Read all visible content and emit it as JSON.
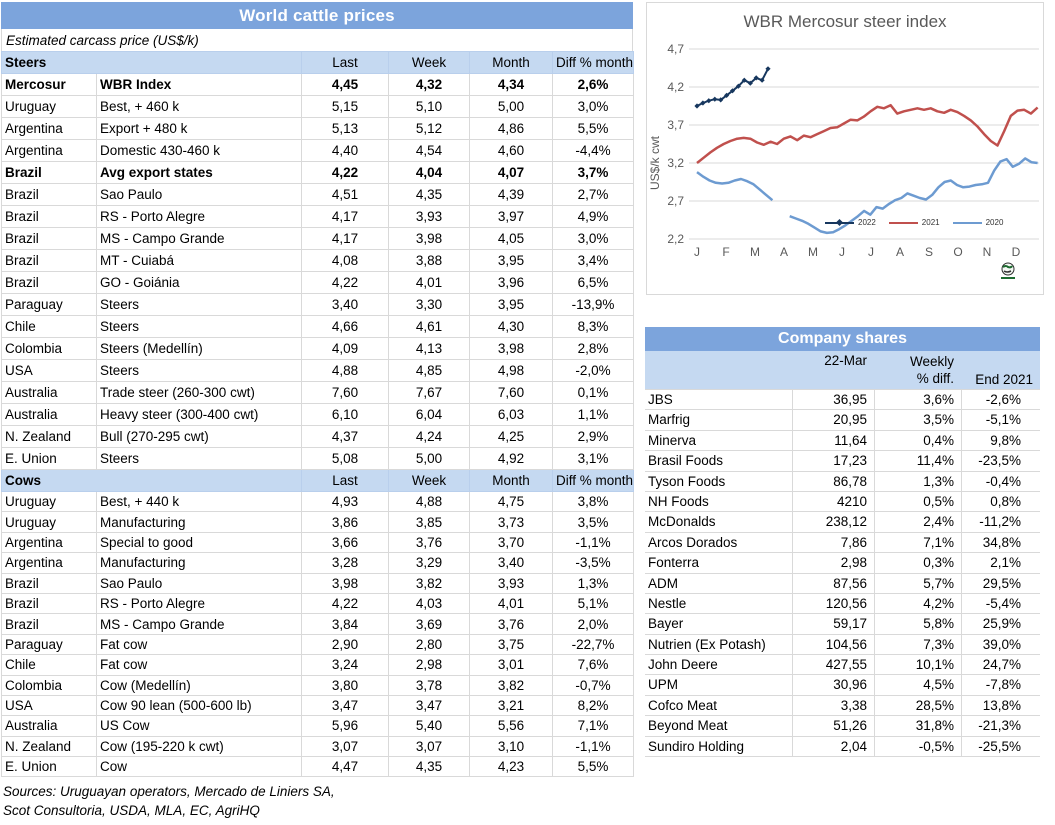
{
  "colors": {
    "title_bar": "#7CA4DC",
    "header_bg": "#C5D9F1",
    "grid": "#D9D9D9",
    "axis_text": "#595959",
    "series_2022": "#17375E",
    "series_2021": "#C0504D",
    "series_2020": "#6D9BD1"
  },
  "price_table": {
    "title": "World cattle prices",
    "subtitle": "Estimated carcass price (US$/k)",
    "columns": [
      "Last",
      "Week",
      "Month",
      "Diff % month"
    ],
    "sections": [
      {
        "label": "Steers",
        "rows": [
          {
            "country": "Mercosur",
            "desc": "WBR Index",
            "last": "4,45",
            "week": "4,32",
            "month": "4,34",
            "diff": "2,6%",
            "bold": true
          },
          {
            "country": "Uruguay",
            "desc": "Best, + 460 k",
            "last": "5,15",
            "week": "5,10",
            "month": "5,00",
            "diff": "3,0%"
          },
          {
            "country": "Argentina",
            "desc": "Export + 480 k",
            "last": "5,13",
            "week": "5,12",
            "month": "4,86",
            "diff": "5,5%"
          },
          {
            "country": "Argentina",
            "desc": "Domestic 430-460 k",
            "last": "4,40",
            "week": "4,54",
            "month": "4,60",
            "diff": "-4,4%"
          },
          {
            "country": "Brazil",
            "desc": "Avg export states",
            "last": "4,22",
            "week": "4,04",
            "month": "4,07",
            "diff": "3,7%",
            "bold": true
          },
          {
            "country": "Brazil",
            "desc": "Sao Paulo",
            "last": "4,51",
            "week": "4,35",
            "month": "4,39",
            "diff": "2,7%"
          },
          {
            "country": "Brazil",
            "desc": "RS - Porto Alegre",
            "last": "4,17",
            "week": "3,93",
            "month": "3,97",
            "diff": "4,9%"
          },
          {
            "country": "Brazil",
            "desc": "MS - Campo Grande",
            "last": "4,17",
            "week": "3,98",
            "month": "4,05",
            "diff": "3,0%"
          },
          {
            "country": "Brazil",
            "desc": "MT - Cuiabá",
            "last": "4,08",
            "week": "3,88",
            "month": "3,95",
            "diff": "3,4%"
          },
          {
            "country": "Brazil",
            "desc": "GO - Goiánia",
            "last": "4,22",
            "week": "4,01",
            "month": "3,96",
            "diff": "6,5%"
          },
          {
            "country": "Paraguay",
            "desc": "Steers",
            "last": "3,40",
            "week": "3,30",
            "month": "3,95",
            "diff": "-13,9%"
          },
          {
            "country": "Chile",
            "desc": "Steers",
            "last": "4,66",
            "week": "4,61",
            "month": "4,30",
            "diff": "8,3%"
          },
          {
            "country": "Colombia",
            "desc": "Steers (Medellín)",
            "last": "4,09",
            "week": "4,13",
            "month": "3,98",
            "diff": "2,8%"
          },
          {
            "country": "USA",
            "desc": "Steers",
            "last": "4,88",
            "week": "4,85",
            "month": "4,98",
            "diff": "-2,0%"
          },
          {
            "country": "Australia",
            "desc": "Trade steer (260-300 cwt)",
            "last": "7,60",
            "week": "7,67",
            "month": "7,60",
            "diff": "0,1%"
          },
          {
            "country": "Australia",
            "desc": "Heavy steer (300-400 cwt)",
            "last": "6,10",
            "week": "6,04",
            "month": "6,03",
            "diff": "1,1%"
          },
          {
            "country": "N. Zealand",
            "desc": "Bull (270-295 cwt)",
            "last": "4,37",
            "week": "4,24",
            "month": "4,25",
            "diff": "2,9%"
          },
          {
            "country": "E. Union",
            "desc": "Steers",
            "last": "5,08",
            "week": "5,00",
            "month": "4,92",
            "diff": "3,1%"
          }
        ]
      },
      {
        "label": "Cows",
        "rows": [
          {
            "country": "Uruguay",
            "desc": "Best, + 440 k",
            "last": "4,93",
            "week": "4,88",
            "month": "4,75",
            "diff": "3,8%"
          },
          {
            "country": "Uruguay",
            "desc": "Manufacturing",
            "last": "3,86",
            "week": "3,85",
            "month": "3,73",
            "diff": "3,5%"
          },
          {
            "country": "Argentina",
            "desc": "Special to good",
            "last": "3,66",
            "week": "3,76",
            "month": "3,70",
            "diff": "-1,1%"
          },
          {
            "country": "Argentina",
            "desc": "Manufacturing",
            "last": "3,28",
            "week": "3,29",
            "month": "3,40",
            "diff": "-3,5%"
          },
          {
            "country": "Brazil",
            "desc": "Sao Paulo",
            "last": "3,98",
            "week": "3,82",
            "month": "3,93",
            "diff": "1,3%"
          },
          {
            "country": "Brazil",
            "desc": "RS - Porto Alegre",
            "last": "4,22",
            "week": "4,03",
            "month": "4,01",
            "diff": "5,1%"
          },
          {
            "country": "Brazil",
            "desc": "MS - Campo Grande",
            "last": "3,84",
            "week": "3,69",
            "month": "3,76",
            "diff": "2,0%"
          },
          {
            "country": "Paraguay",
            "desc": "Fat cow",
            "last": "2,90",
            "week": "2,80",
            "month": "3,75",
            "diff": "-22,7%"
          },
          {
            "country": "Chile",
            "desc": "Fat cow",
            "last": "3,24",
            "week": "2,98",
            "month": "3,01",
            "diff": "7,6%"
          },
          {
            "country": "Colombia",
            "desc": "Cow (Medellín)",
            "last": "3,80",
            "week": "3,78",
            "month": "3,82",
            "diff": "-0,7%"
          },
          {
            "country": "USA",
            "desc": "Cow 90 lean (500-600 lb)",
            "last": "3,47",
            "week": "3,47",
            "month": "3,21",
            "diff": "8,2%"
          },
          {
            "country": "Australia",
            "desc": "US Cow",
            "last": "5,96",
            "week": "5,40",
            "month": "5,56",
            "diff": "7,1%"
          },
          {
            "country": "N. Zealand",
            "desc": "Cow (195-220 k cwt)",
            "last": "3,07",
            "week": "3,07",
            "month": "3,10",
            "diff": "-1,1%"
          },
          {
            "country": "E. Union",
            "desc": "Cow",
            "last": "4,47",
            "week": "4,35",
            "month": "4,23",
            "diff": "5,5%"
          }
        ]
      }
    ],
    "sources": [
      "Sources: Uruguayan operators, Mercado de Liniers SA,",
      "Scot Consultoria, USDA, MLA, EC, AgriHQ"
    ]
  },
  "chart_data": {
    "type": "line",
    "title": "WBR Mercosur steer index",
    "ylabel": "US$/k cwt",
    "ylim": [
      2.2,
      4.7
    ],
    "ytick_values": [
      4.7,
      4.2,
      3.7,
      3.2,
      2.7,
      2.2
    ],
    "yticks": [
      "4,7",
      "4,2",
      "3,7",
      "3,2",
      "2,7",
      "2,2"
    ],
    "xticks": [
      "J",
      "F",
      "M",
      "A",
      "M",
      "J",
      "J",
      "A",
      "S",
      "O",
      "N",
      "D"
    ],
    "xlim": [
      0,
      11.8
    ],
    "grid": true,
    "legend_position": "inside-bottom",
    "series": [
      {
        "name": "2022",
        "color": "#17375E",
        "marker": "diamond",
        "segments": [
          {
            "x_start": 0,
            "x_end": 2.45,
            "y": [
              3.95,
              3.99,
              4.02,
              4.04,
              4.03,
              4.09,
              4.15,
              4.21,
              4.29,
              4.25,
              4.32,
              4.29,
              4.44
            ]
          }
        ]
      },
      {
        "name": "2021",
        "color": "#C0504D",
        "segments": [
          {
            "x_start": 0,
            "x_end": 11.75,
            "y": [
              3.2,
              3.27,
              3.34,
              3.4,
              3.45,
              3.49,
              3.52,
              3.53,
              3.52,
              3.47,
              3.44,
              3.48,
              3.45,
              3.52,
              3.55,
              3.5,
              3.56,
              3.54,
              3.58,
              3.62,
              3.66,
              3.67,
              3.72,
              3.77,
              3.76,
              3.81,
              3.88,
              3.94,
              3.92,
              3.96,
              3.85,
              3.88,
              3.9,
              3.92,
              3.9,
              3.92,
              3.88,
              3.86,
              3.9,
              3.87,
              3.82,
              3.76,
              3.68,
              3.58,
              3.49,
              3.43,
              3.62,
              3.82,
              3.89,
              3.9,
              3.85,
              3.93
            ]
          }
        ]
      },
      {
        "name": "2020",
        "color": "#6D9BD1",
        "segments": [
          {
            "x_start": 0,
            "x_end": 2.6,
            "y": [
              3.08,
              3.02,
              2.97,
              2.94,
              2.93,
              2.94,
              2.97,
              2.99,
              2.96,
              2.92,
              2.85,
              2.78,
              2.71
            ]
          },
          {
            "x_start": 3.2,
            "x_end": 11.75,
            "y": [
              2.5,
              2.47,
              2.44,
              2.4,
              2.35,
              2.3,
              2.28,
              2.29,
              2.33,
              2.38,
              2.44,
              2.5,
              2.57,
              2.52,
              2.62,
              2.6,
              2.66,
              2.71,
              2.74,
              2.8,
              2.77,
              2.74,
              2.72,
              2.78,
              2.88,
              2.95,
              2.97,
              2.91,
              2.88,
              2.89,
              2.91,
              2.92,
              2.94,
              3.1,
              3.22,
              3.25,
              3.15,
              3.19,
              3.26,
              3.21,
              3.2
            ]
          }
        ]
      }
    ]
  },
  "company_table": {
    "title": "Company shares",
    "col_date": "22-Mar",
    "col_weekly_1": "Weekly",
    "col_weekly_2": "% diff.",
    "col_end": "End 2021",
    "rows": [
      {
        "name": "JBS",
        "price": "36,95",
        "weekly": "3,6%",
        "end": "-2,6%"
      },
      {
        "name": "Marfrig",
        "price": "20,95",
        "weekly": "3,5%",
        "end": "-5,1%"
      },
      {
        "name": "Minerva",
        "price": "11,64",
        "weekly": "0,4%",
        "end": "9,8%"
      },
      {
        "name": "Brasil Foods",
        "price": "17,23",
        "weekly": "11,4%",
        "end": "-23,5%"
      },
      {
        "name": "Tyson Foods",
        "price": "86,78",
        "weekly": "1,3%",
        "end": "-0,4%"
      },
      {
        "name": "NH Foods",
        "price": "4210",
        "weekly": "0,5%",
        "end": "0,8%"
      },
      {
        "name": "McDonalds",
        "price": "238,12",
        "weekly": "2,4%",
        "end": "-11,2%"
      },
      {
        "name": "Arcos Dorados",
        "price": "7,86",
        "weekly": "7,1%",
        "end": "34,8%"
      },
      {
        "name": "Fonterra",
        "price": "2,98",
        "weekly": "0,3%",
        "end": "2,1%"
      },
      {
        "name": "ADM",
        "price": "87,56",
        "weekly": "5,7%",
        "end": "29,5%"
      },
      {
        "name": "Nestle",
        "price": "120,56",
        "weekly": "4,2%",
        "end": "-5,4%"
      },
      {
        "name": "Bayer",
        "price": "59,17",
        "weekly": "5,8%",
        "end": "25,9%"
      },
      {
        "name": "Nutrien (Ex Potash)",
        "price": "104,56",
        "weekly": "7,3%",
        "end": "39,0%"
      },
      {
        "name": "John Deere",
        "price": "427,55",
        "weekly": "10,1%",
        "end": "24,7%"
      },
      {
        "name": "UPM",
        "price": "30,96",
        "weekly": "4,5%",
        "end": "-7,8%"
      },
      {
        "name": "Cofco Meat",
        "price": "3,38",
        "weekly": "28,5%",
        "end": "13,8%"
      },
      {
        "name": "Beyond Meat",
        "price": "51,26",
        "weekly": "31,8%",
        "end": "-21,3%"
      },
      {
        "name": "Sundiro Holding",
        "price": "2,04",
        "weekly": "-0,5%",
        "end": "-25,5%"
      }
    ]
  }
}
